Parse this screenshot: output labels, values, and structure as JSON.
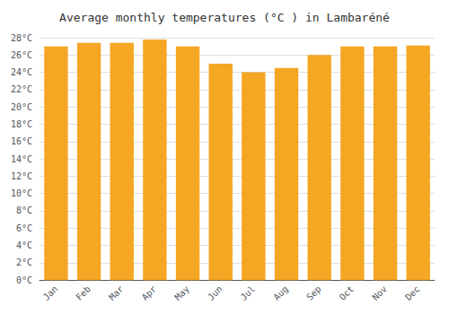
{
  "chart_data": {
    "type": "bar",
    "title": "Average monthly temperatures (°C ) in Lambaréné",
    "categories": [
      "Jan",
      "Feb",
      "Mar",
      "Apr",
      "May",
      "Jun",
      "Jul",
      "Aug",
      "Sep",
      "Oct",
      "Nov",
      "Dec"
    ],
    "values": [
      27.0,
      27.4,
      27.4,
      27.8,
      27.0,
      25.0,
      24.0,
      24.5,
      26.0,
      27.0,
      27.0,
      27.1
    ],
    "color": "#F5A623",
    "ylim": [
      0,
      28
    ],
    "yticks": [
      {
        "value": 0,
        "label": "0°C"
      },
      {
        "value": 2,
        "label": "2°C"
      },
      {
        "value": 4,
        "label": "4°C"
      },
      {
        "value": 6,
        "label": "6°C"
      },
      {
        "value": 8,
        "label": "8°C"
      },
      {
        "value": 10,
        "label": "10°C"
      },
      {
        "value": 12,
        "label": "12°C"
      },
      {
        "value": 14,
        "label": "14°C"
      },
      {
        "value": 16,
        "label": "16°C"
      },
      {
        "value": 18,
        "label": "18°C"
      },
      {
        "value": 20,
        "label": "20°C"
      },
      {
        "value": 22,
        "label": "22°C"
      },
      {
        "value": 24,
        "label": "24°C"
      },
      {
        "value": 26,
        "label": "26°C"
      },
      {
        "value": 28,
        "label": "28°C"
      }
    ],
    "grid": true
  }
}
